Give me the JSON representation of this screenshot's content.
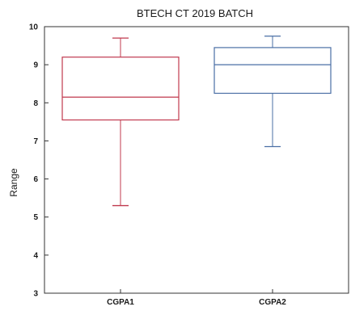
{
  "chart_data": {
    "type": "box",
    "title": "BTECH CT 2019 BATCH",
    "xlabel": "",
    "ylabel": "Range",
    "ylim": [
      3,
      10
    ],
    "yticks": [
      3,
      4,
      5,
      6,
      7,
      8,
      9,
      10
    ],
    "grid": false,
    "legend": "none",
    "categories": [
      "CGPA1",
      "CGPA2"
    ],
    "series": [
      {
        "category": "CGPA1",
        "min": 5.3,
        "q1": 7.55,
        "median": 8.15,
        "q3": 9.2,
        "max": 9.7,
        "color": "#c0394e"
      },
      {
        "category": "CGPA2",
        "min": 6.85,
        "q1": 8.25,
        "median": 9.0,
        "q3": 9.45,
        "max": 9.75,
        "color": "#4a6fa5"
      }
    ]
  }
}
